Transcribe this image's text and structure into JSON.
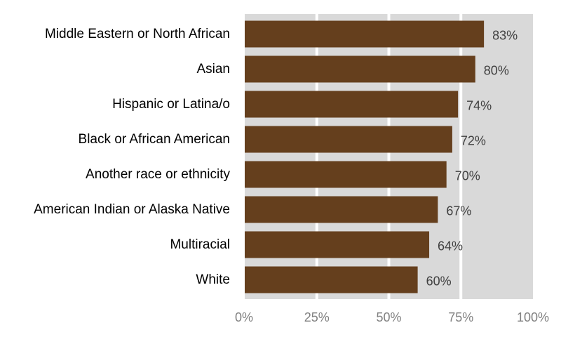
{
  "chart_data": {
    "type": "bar",
    "orientation": "horizontal",
    "title": "",
    "xlabel": "",
    "ylabel": "",
    "categories": [
      "Middle Eastern or North African",
      "Asian",
      "Hispanic or Latina/o",
      "Black or African American",
      "Another race or ethnicity",
      "American Indian or Alaska Native",
      "Multiracial",
      "White"
    ],
    "values": [
      83,
      80,
      74,
      72,
      70,
      67,
      64,
      60
    ],
    "value_labels": [
      "83%",
      "80%",
      "74%",
      "72%",
      "70%",
      "67%",
      "64%",
      "60%"
    ],
    "xlim": [
      0,
      100
    ],
    "x_ticks": [
      0,
      25,
      50,
      75,
      100
    ],
    "x_tick_labels": [
      "0%",
      "25%",
      "50%",
      "75%",
      "100%"
    ],
    "grid": true,
    "legend": "none",
    "colors": {
      "bar": "#653f1d",
      "plot_background": "#d9d9d9",
      "gridline": "#ffffff",
      "category_text": "#000000",
      "value_text": "#404040",
      "tick_text": "#808080"
    }
  }
}
